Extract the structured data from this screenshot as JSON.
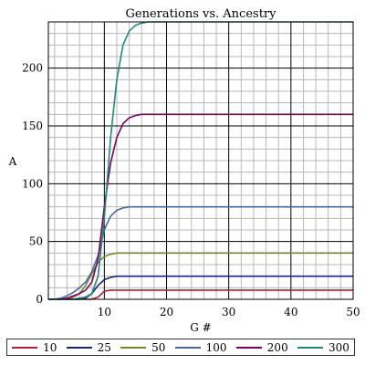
{
  "chart_data": {
    "type": "line",
    "title": "Generations vs. Ancestry",
    "xlabel": "G #",
    "ylabel": "A",
    "xlim": [
      1,
      50
    ],
    "ylim": [
      0,
      240
    ],
    "xticks": [
      10,
      20,
      30,
      40,
      50
    ],
    "yticks": [
      0,
      50,
      100,
      150,
      200
    ],
    "grid": true,
    "legend_position": "bottom",
    "series": [
      {
        "name": "10",
        "color": "#b02030",
        "x": [
          1,
          2,
          3,
          4,
          5,
          6,
          7,
          8,
          9,
          10,
          11,
          12,
          13,
          14,
          15,
          16,
          17,
          18,
          19,
          20,
          25,
          30,
          35,
          40,
          45,
          50
        ],
        "y": [
          0,
          0,
          0,
          0,
          0,
          0,
          0,
          0,
          2,
          7,
          8,
          8,
          8,
          8,
          8,
          8,
          8,
          8,
          8,
          8,
          8,
          8,
          8,
          8,
          8,
          8
        ]
      },
      {
        "name": "25",
        "color": "#1a237e",
        "x": [
          1,
          2,
          3,
          4,
          5,
          6,
          7,
          8,
          9,
          10,
          11,
          12,
          13,
          14,
          15,
          16,
          17,
          18,
          19,
          20,
          25,
          30,
          35,
          40,
          45,
          50
        ],
        "y": [
          0,
          0,
          0,
          0,
          0,
          0,
          1,
          5,
          12,
          17,
          19,
          20,
          20,
          20,
          20,
          20,
          20,
          20,
          20,
          20,
          20,
          20,
          20,
          20,
          20,
          20
        ]
      },
      {
        "name": "50",
        "color": "#6b8e23",
        "x": [
          1,
          2,
          3,
          4,
          5,
          6,
          7,
          8,
          9,
          10,
          11,
          12,
          13,
          14,
          15,
          16,
          17,
          18,
          19,
          20,
          25,
          30,
          35,
          40,
          45,
          50
        ],
        "y": [
          0,
          0,
          0,
          0,
          2,
          5,
          12,
          22,
          32,
          37,
          39,
          40,
          40,
          40,
          40,
          40,
          40,
          40,
          40,
          40,
          40,
          40,
          40,
          40,
          40,
          40
        ]
      },
      {
        "name": "100",
        "color": "#4a6a9a",
        "x": [
          1,
          2,
          3,
          4,
          5,
          6,
          7,
          8,
          9,
          10,
          11,
          12,
          13,
          14,
          15,
          16,
          17,
          18,
          19,
          20,
          25,
          30,
          35,
          40,
          45,
          50
        ],
        "y": [
          0,
          0,
          1,
          3,
          6,
          10,
          15,
          24,
          38,
          60,
          72,
          77,
          79,
          80,
          80,
          80,
          80,
          80,
          80,
          80,
          80,
          80,
          80,
          80,
          80,
          80
        ]
      },
      {
        "name": "200",
        "color": "#800060",
        "x": [
          1,
          2,
          3,
          4,
          5,
          6,
          7,
          8,
          9,
          10,
          11,
          12,
          13,
          14,
          15,
          16,
          17,
          18,
          19,
          20,
          25,
          30,
          35,
          40,
          45,
          50
        ],
        "y": [
          0,
          0,
          0,
          1,
          3,
          5,
          8,
          15,
          35,
          80,
          118,
          140,
          152,
          157,
          159,
          160,
          160,
          160,
          160,
          160,
          160,
          160,
          160,
          160,
          160,
          160
        ]
      },
      {
        "name": "300",
        "color": "#1f8a7a",
        "x": [
          1,
          2,
          3,
          4,
          5,
          6,
          7,
          8,
          9,
          10,
          11,
          12,
          13,
          14,
          15,
          16,
          17,
          18,
          19,
          20,
          25,
          30,
          35,
          40,
          45,
          50
        ],
        "y": [
          0,
          0,
          0,
          0,
          0,
          1,
          2,
          5,
          20,
          70,
          140,
          190,
          220,
          232,
          237,
          239,
          240,
          240,
          240,
          240,
          240,
          240,
          240,
          240,
          240,
          240
        ]
      }
    ]
  }
}
